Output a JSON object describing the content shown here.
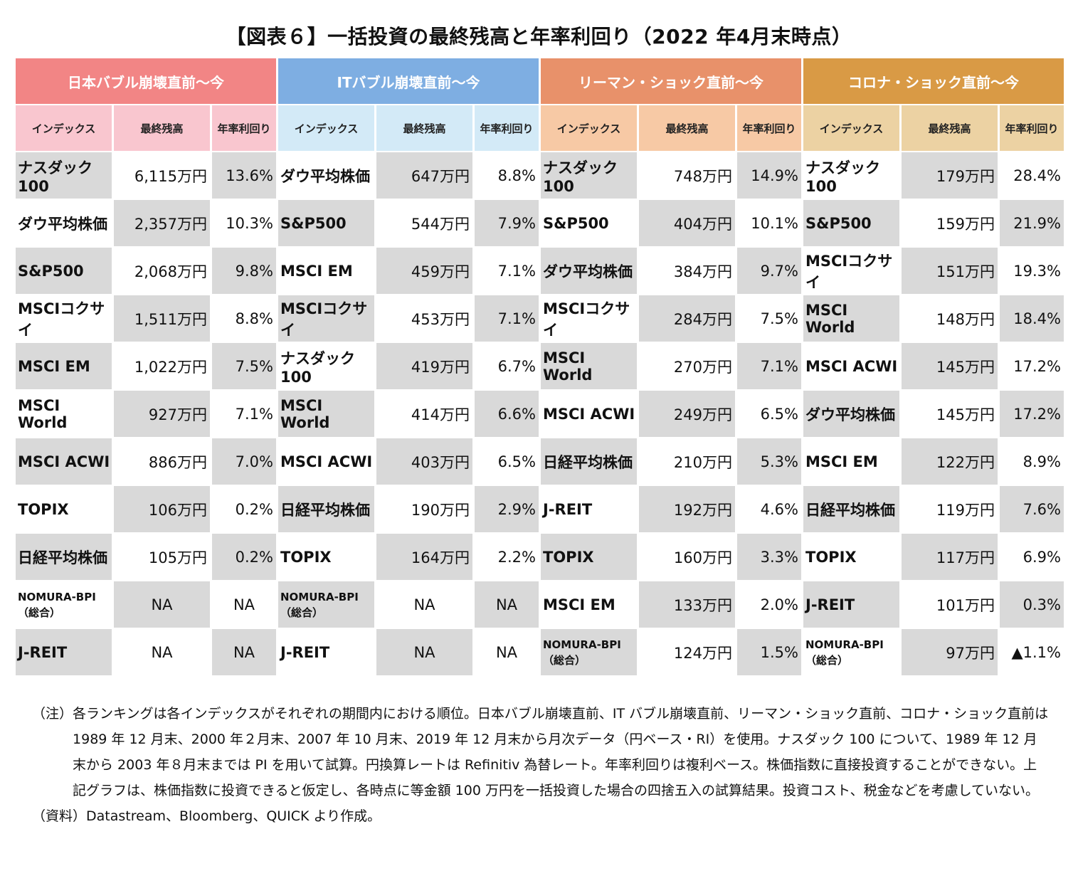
{
  "title": "【図表６】一括投資の最終残高と年率利回り（2022 年4月末時点）",
  "column_headers": {
    "index": "インデックス",
    "balance": "最終残高",
    "annual": "年率利回り"
  },
  "sections": [
    {
      "name": "日本バブル崩壊直前～今",
      "color": "#f28585",
      "subheader_color": "#f9c6cf",
      "rows": [
        {
          "index": "ナスダック100",
          "balance": "6,115万円",
          "annual": "13.6%"
        },
        {
          "index": "ダウ平均株価",
          "balance": "2,357万円",
          "annual": "10.3%"
        },
        {
          "index": "S&P500",
          "balance": "2,068万円",
          "annual": "9.8%"
        },
        {
          "index": "MSCIコクサイ",
          "balance": "1,511万円",
          "annual": "8.8%"
        },
        {
          "index": "MSCI EM",
          "balance": "1,022万円",
          "annual": "7.5%"
        },
        {
          "index": "MSCI World",
          "balance": "927万円",
          "annual": "7.1%"
        },
        {
          "index": "MSCI ACWI",
          "balance": "886万円",
          "annual": "7.0%"
        },
        {
          "index": "TOPIX",
          "balance": "106万円",
          "annual": "0.2%"
        },
        {
          "index": "日経平均株価",
          "balance": "105万円",
          "annual": "0.2%"
        },
        {
          "index": "NOMURA-BPI\n（総合）",
          "balance": "NA",
          "annual": "NA"
        },
        {
          "index": "J-REIT",
          "balance": "NA",
          "annual": "NA"
        }
      ]
    },
    {
      "name": "ITバブル崩壊直前～今",
      "color": "#7eaee2",
      "subheader_color": "#d3eaf7",
      "rows": [
        {
          "index": "ダウ平均株価",
          "balance": "647万円",
          "annual": "8.8%"
        },
        {
          "index": "S&P500",
          "balance": "544万円",
          "annual": "7.9%"
        },
        {
          "index": "MSCI EM",
          "balance": "459万円",
          "annual": "7.1%"
        },
        {
          "index": "MSCIコクサイ",
          "balance": "453万円",
          "annual": "7.1%"
        },
        {
          "index": "ナスダック100",
          "balance": "419万円",
          "annual": "6.7%"
        },
        {
          "index": "MSCI World",
          "balance": "414万円",
          "annual": "6.6%"
        },
        {
          "index": "MSCI ACWI",
          "balance": "403万円",
          "annual": "6.5%"
        },
        {
          "index": "日経平均株価",
          "balance": "190万円",
          "annual": "2.9%"
        },
        {
          "index": "TOPIX",
          "balance": "164万円",
          "annual": "2.2%"
        },
        {
          "index": "NOMURA-BPI\n（総合）",
          "balance": "NA",
          "annual": "NA"
        },
        {
          "index": "J-REIT",
          "balance": "NA",
          "annual": "NA"
        }
      ]
    },
    {
      "name": "リーマン・ショック直前～今",
      "color": "#e8916a",
      "subheader_color": "#f7c9a5",
      "rows": [
        {
          "index": "ナスダック100",
          "balance": "748万円",
          "annual": "14.9%"
        },
        {
          "index": "S&P500",
          "balance": "404万円",
          "annual": "10.1%"
        },
        {
          "index": "ダウ平均株価",
          "balance": "384万円",
          "annual": "9.7%"
        },
        {
          "index": "MSCIコクサイ",
          "balance": "284万円",
          "annual": "7.5%"
        },
        {
          "index": "MSCI World",
          "balance": "270万円",
          "annual": "7.1%"
        },
        {
          "index": "MSCI ACWI",
          "balance": "249万円",
          "annual": "6.5%"
        },
        {
          "index": "日経平均株価",
          "balance": "210万円",
          "annual": "5.3%"
        },
        {
          "index": "J-REIT",
          "balance": "192万円",
          "annual": "4.6%"
        },
        {
          "index": "TOPIX",
          "balance": "160万円",
          "annual": "3.3%"
        },
        {
          "index": "MSCI EM",
          "balance": "133万円",
          "annual": "2.0%"
        },
        {
          "index": "NOMURA-BPI\n（総合）",
          "balance": "124万円",
          "annual": "1.5%"
        }
      ]
    },
    {
      "name": "コロナ・ショック直前～今",
      "color": "#d99a45",
      "subheader_color": "#ecd2a3",
      "rows": [
        {
          "index": "ナスダック100",
          "balance": "179万円",
          "annual": "28.4%"
        },
        {
          "index": "S&P500",
          "balance": "159万円",
          "annual": "21.9%"
        },
        {
          "index": "MSCIコクサイ",
          "balance": "151万円",
          "annual": "19.3%"
        },
        {
          "index": "MSCI World",
          "balance": "148万円",
          "annual": "18.4%"
        },
        {
          "index": "MSCI ACWI",
          "balance": "145万円",
          "annual": "17.2%"
        },
        {
          "index": "ダウ平均株価",
          "balance": "145万円",
          "annual": "17.2%"
        },
        {
          "index": "MSCI EM",
          "balance": "122万円",
          "annual": "8.9%"
        },
        {
          "index": "日経平均株価",
          "balance": "119万円",
          "annual": "7.6%"
        },
        {
          "index": "TOPIX",
          "balance": "117万円",
          "annual": "6.9%"
        },
        {
          "index": "J-REIT",
          "balance": "101万円",
          "annual": "0.3%"
        },
        {
          "index": "NOMURA-BPI\n（総合）",
          "balance": "97万円",
          "annual": "▲1.1%"
        }
      ]
    }
  ],
  "shade_color": "#d9d9d9",
  "notes": {
    "note_label": "（注）",
    "note_text": "各ランキングは各インデックスがそれぞれの期間内における順位。日本バブル崩壊直前、IT バブル崩壊直前、リーマン・ショック直前、コロナ・ショック直前は 1989 年 12 月末、2000 年２月末、2007 年 10 月末、2019 年 12 月末から月次データ（円ベース・RI）を使用。ナスダック 100 について、1989 年 12 月末から 2003 年８月末までは PI を用いて試算。円換算レートは Refinitiv 為替レート。年率利回りは複利ベース。株価指数に直接投資することができない。上記グラフは、株価指数に投資できると仮定し、各時点に等金額 100 万円を一括投資した場合の四捨五入の試算結果。投資コスト、税金などを考慮していない。",
    "source_label": "（資料）",
    "source_text": "Datastream、Bloomberg、QUICK より作成。"
  }
}
